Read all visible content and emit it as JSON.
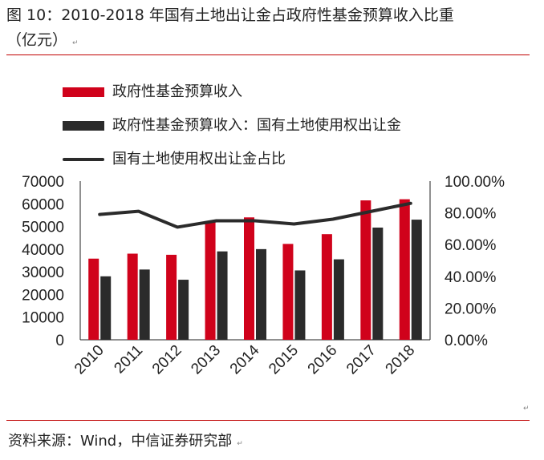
{
  "header": {
    "title_line1": "图 10：2010-2018 年国有土地出让金占政府性基金预算收入比重",
    "title_line2": "（亿元）"
  },
  "footer": {
    "source": "资料来源：Wind，中信证券研究部"
  },
  "colors": {
    "accent": "#c00000",
    "series_revenue": "#d0021b",
    "series_land": "#2b2b2b",
    "series_ratio": "#2b2b2b"
  },
  "chart_data": {
    "type": "bar",
    "categories": [
      "2010",
      "2011",
      "2012",
      "2013",
      "2014",
      "2015",
      "2016",
      "2017",
      "2018"
    ],
    "series": [
      {
        "name": "政府性基金预算收入",
        "type": "bar",
        "axis": "left",
        "values": [
          35800,
          38000,
          37500,
          52000,
          54000,
          42300,
          46600,
          61500,
          62000
        ]
      },
      {
        "name": "政府性基金预算收入：国有土地使用权出让金",
        "type": "bar",
        "axis": "left",
        "values": [
          28000,
          31000,
          26500,
          39000,
          40000,
          30600,
          35500,
          49500,
          53000
        ]
      },
      {
        "name": "国有土地使用权出让金占比",
        "type": "line",
        "axis": "right",
        "values": [
          0.79,
          0.81,
          0.71,
          0.75,
          0.75,
          0.73,
          0.76,
          0.81,
          0.86
        ]
      }
    ],
    "y_left": {
      "min": 0,
      "max": 70000,
      "ticks": [
        "0",
        "10000",
        "20000",
        "30000",
        "40000",
        "50000",
        "60000",
        "70000"
      ]
    },
    "y_right": {
      "min": 0,
      "max": 1,
      "ticks": [
        "0.00%",
        "20.00%",
        "40.00%",
        "60.00%",
        "80.00%",
        "100.00%"
      ]
    },
    "grid": false,
    "legend": "top-left"
  }
}
